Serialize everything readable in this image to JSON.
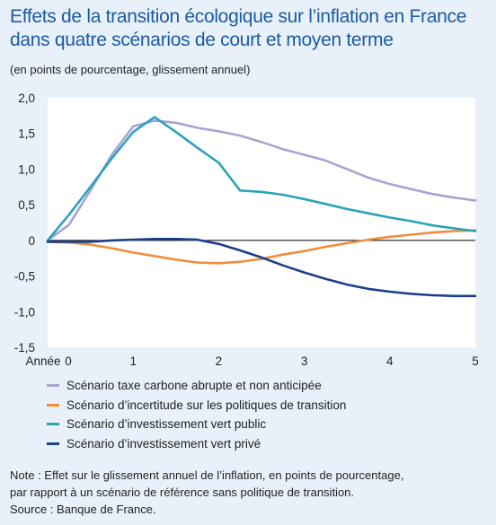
{
  "header": {
    "title": "Effets de la transition écologique sur l’inflation en France dans quatre scénarios de court et moyen terme",
    "subtitle": "(en points de pourcentage, glissement annuel)"
  },
  "chart_data": {
    "type": "line",
    "xlabel": "Année",
    "ylabel": "",
    "xlim": [
      0,
      5
    ],
    "ylim": [
      -1.5,
      2.0
    ],
    "x_ticks": [
      "0",
      "1",
      "2",
      "3",
      "4",
      "5"
    ],
    "y_ticks": [
      "2,0",
      "1,5",
      "1,0",
      "0,5",
      "0",
      "-0,5",
      "-1,0",
      "-1,5"
    ],
    "grid": false,
    "legend_position": "bottom",
    "series": [
      {
        "name": "Scénario taxe carbone abrupte et non anticipée",
        "color": "#a7a4d6",
        "x": [
          0,
          0.25,
          0.5,
          0.75,
          1.0,
          1.25,
          1.5,
          1.75,
          2.0,
          2.25,
          2.5,
          2.75,
          3.0,
          3.25,
          3.5,
          3.75,
          4.0,
          4.25,
          4.5,
          4.75,
          5.0
        ],
        "values": [
          0,
          0.22,
          0.7,
          1.2,
          1.6,
          1.68,
          1.65,
          1.58,
          1.53,
          1.47,
          1.38,
          1.28,
          1.2,
          1.12,
          1.0,
          0.88,
          0.79,
          0.72,
          0.65,
          0.6,
          0.56
        ]
      },
      {
        "name": "Scénario d’incertitude sur les politiques de transition",
        "color": "#f28c3a",
        "x": [
          0,
          0.25,
          0.5,
          0.75,
          1.0,
          1.25,
          1.5,
          1.75,
          2.0,
          2.25,
          2.5,
          2.75,
          3.0,
          3.25,
          3.5,
          3.75,
          4.0,
          4.25,
          4.5,
          4.75,
          5.0
        ],
        "values": [
          -0.02,
          -0.03,
          -0.06,
          -0.11,
          -0.17,
          -0.22,
          -0.27,
          -0.31,
          -0.32,
          -0.3,
          -0.26,
          -0.2,
          -0.15,
          -0.09,
          -0.04,
          0.01,
          0.05,
          0.08,
          0.11,
          0.13,
          0.14
        ]
      },
      {
        "name": "Scénario d’investissement vert public",
        "color": "#2ca3b9",
        "x": [
          0,
          0.25,
          0.5,
          0.75,
          1.0,
          1.25,
          1.5,
          1.75,
          2.0,
          2.25,
          2.5,
          2.75,
          3.0,
          3.25,
          3.5,
          3.75,
          4.0,
          4.25,
          4.5,
          4.75,
          5.0
        ],
        "values": [
          0,
          0.36,
          0.75,
          1.15,
          1.52,
          1.73,
          1.52,
          1.3,
          1.09,
          0.7,
          0.68,
          0.64,
          0.58,
          0.51,
          0.44,
          0.38,
          0.32,
          0.27,
          0.21,
          0.17,
          0.13
        ]
      },
      {
        "name": "Scénario d’investissement vert privé",
        "color": "#1c3f8c",
        "x": [
          0,
          0.25,
          0.5,
          0.75,
          1.0,
          1.25,
          1.5,
          1.75,
          2.0,
          2.25,
          2.5,
          2.75,
          3.0,
          3.25,
          3.5,
          3.75,
          4.0,
          4.25,
          4.5,
          4.75,
          5.0
        ],
        "values": [
          -0.02,
          -0.02,
          -0.02,
          0,
          0.01,
          0.02,
          0.02,
          0.01,
          -0.05,
          -0.14,
          -0.24,
          -0.35,
          -0.45,
          -0.54,
          -0.62,
          -0.68,
          -0.72,
          -0.75,
          -0.77,
          -0.78,
          -0.78
        ]
      }
    ]
  },
  "footer": {
    "note_line1": "Note : Effet sur le glissement annuel de l’inflation, en points de pourcentage,",
    "note_line2": "par rapport à un scénario de référence sans politique de transition.",
    "source": "Source : Banque de France."
  }
}
